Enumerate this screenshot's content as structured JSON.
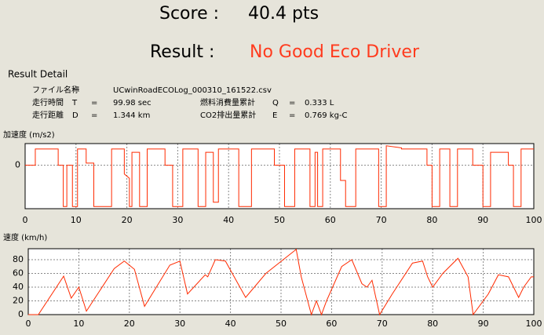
{
  "score_label": "Score :",
  "score": "40.4 pts",
  "result_label": "Result :",
  "result": "No Good Eco Driver",
  "detail": {
    "title": "Result Detail",
    "file": {
      "label": "ファイル名称",
      "sep": "ー",
      "value": "UCwinRoadECOLog_000310_161522.csv"
    },
    "rows": [
      [
        {
          "label": "走行時間",
          "symbol": "T",
          "eq": "=",
          "value": "99.98 sec"
        },
        {
          "label": "燃料消費量累計",
          "symbol": "Q",
          "eq": "=",
          "value": "0.333 L"
        }
      ],
      [
        {
          "label": "走行距離",
          "symbol": "D",
          "eq": "=",
          "value": "1.344 km"
        },
        {
          "label": "CO2排出量累計",
          "symbol": "E",
          "eq": "=",
          "value": "0.769 kg-C"
        }
      ]
    ]
  },
  "chart_data": [
    {
      "type": "line",
      "y_label": "加速度 (m/s2)",
      "x": [
        0,
        2,
        2,
        6.5,
        6.5,
        7.5,
        7.5,
        8.2,
        8.2,
        9.3,
        9.3,
        10.3,
        10.3,
        12,
        12,
        13.5,
        13.5,
        17,
        17,
        19.5,
        19.5,
        20.5,
        20.5,
        21,
        21,
        22.5,
        22.5,
        24,
        24,
        27.5,
        27.5,
        29,
        29,
        31,
        31,
        34,
        34,
        35.5,
        35.5,
        37,
        37,
        38,
        38,
        42,
        42,
        44.5,
        44.5,
        49,
        49,
        51,
        51,
        53,
        53,
        56,
        56,
        57,
        57,
        57.5,
        57.5,
        58.5,
        58.5,
        62,
        62,
        63,
        63,
        65,
        65,
        69.5,
        69.5,
        71,
        71,
        74,
        74,
        79,
        79,
        80,
        80,
        81.5,
        81.5,
        83.5,
        83.5,
        85,
        85,
        88,
        88,
        90,
        90,
        91.5,
        91.5,
        95,
        95,
        96,
        96,
        97.5,
        97.5,
        100
      ],
      "series": [
        {
          "color": "#ff2a00",
          "values": [
            0,
            0,
            0.75,
            0.75,
            0,
            0,
            -1.9,
            -1.9,
            0,
            0,
            -1.9,
            -1.9,
            0.75,
            0.75,
            0.1,
            0.1,
            -1.9,
            -1.9,
            0.75,
            0.75,
            -0.4,
            -0.6,
            -1.9,
            -1.9,
            0.6,
            0.6,
            -1.9,
            -1.9,
            0.75,
            0.75,
            0,
            0,
            -1.9,
            -1.9,
            0.75,
            0.75,
            -1.9,
            -1.9,
            0.6,
            0.6,
            -1.7,
            -1.7,
            0.75,
            0.75,
            -1.9,
            -1.9,
            0.75,
            0.75,
            0,
            0,
            -1.9,
            -1.9,
            0.75,
            0.75,
            -1.9,
            -1.9,
            0.6,
            0.6,
            -1.9,
            -1.9,
            0.75,
            0.75,
            -0.7,
            -0.7,
            -1.9,
            -1.9,
            0.75,
            0.75,
            -1.9,
            -1.9,
            0.9,
            0.8,
            0.75,
            0.75,
            0,
            0,
            -1.9,
            -1.9,
            0.75,
            0.75,
            -1.9,
            -1.9,
            0.75,
            0.75,
            0,
            0,
            -1.9,
            -1.9,
            0.6,
            0.6,
            0,
            0,
            -1.9,
            -1.9,
            0.75,
            0.75
          ]
        }
      ],
      "xlim": [
        0,
        100
      ],
      "ylim": [
        -2,
        1
      ],
      "xticks": [
        0,
        10,
        20,
        30,
        40,
        50,
        60,
        70,
        80,
        90,
        100
      ],
      "yticks": [
        0
      ],
      "grid": true
    },
    {
      "type": "line",
      "y_label": "速度 (km/h)",
      "x": [
        0,
        2,
        7,
        8.5,
        10,
        11.5,
        17,
        19,
        21,
        23,
        28,
        30,
        31.5,
        35,
        35.5,
        37,
        39,
        43,
        47,
        53,
        54,
        56,
        57,
        58,
        59,
        62,
        64,
        66,
        67,
        68,
        69.5,
        72,
        76,
        78,
        79,
        80,
        82,
        85,
        87,
        88,
        91,
        93,
        95,
        97,
        98,
        99.5,
        100
      ],
      "series": [
        {
          "color": "#ff2a00",
          "values": [
            0,
            0,
            56,
            24,
            40,
            5,
            67,
            78,
            66,
            12,
            72,
            78,
            30,
            58,
            55,
            80,
            78,
            25,
            60,
            95,
            55,
            0,
            20,
            0,
            20,
            70,
            80,
            45,
            40,
            50,
            0,
            30,
            75,
            78,
            55,
            40,
            60,
            82,
            55,
            0,
            30,
            58,
            55,
            25,
            40,
            55,
            55
          ]
        }
      ],
      "xlim": [
        0,
        100
      ],
      "ylim": [
        0,
        96
      ],
      "xticks": [
        0,
        10,
        20,
        30,
        40,
        50,
        60,
        70,
        80,
        90,
        100
      ],
      "yticks": [
        0,
        20,
        40,
        60,
        80
      ],
      "grid": true
    }
  ]
}
